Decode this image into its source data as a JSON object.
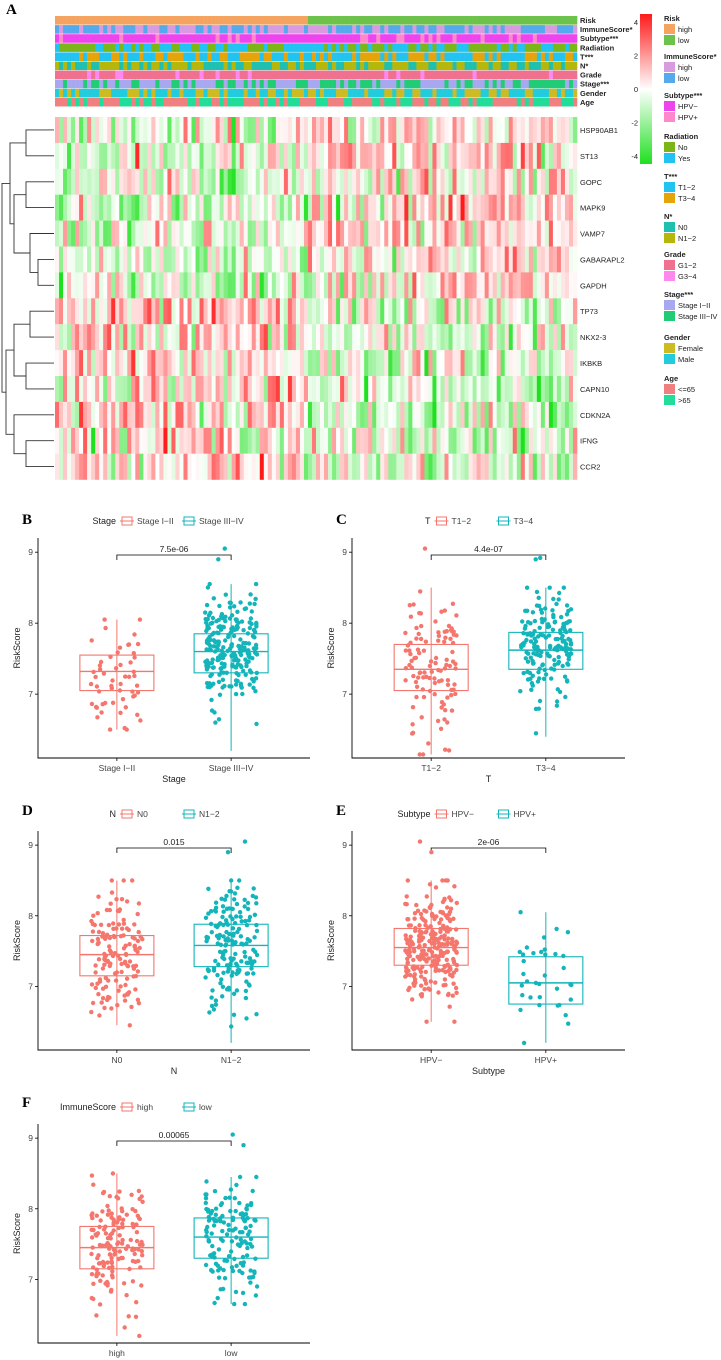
{
  "figure": {
    "panel_letters": [
      "A",
      "B",
      "C",
      "D",
      "E",
      "F"
    ]
  },
  "heatmap": {
    "annotation_tracks": [
      "Risk",
      "ImmuneScore*",
      "Subtype***",
      "Radiation",
      "T***",
      "N*",
      "Grade",
      "Stage***",
      "Gender",
      "Age"
    ],
    "genes": [
      "HSP90AB1",
      "ST13",
      "GOPC",
      "MAPK9",
      "VAMP7",
      "GABARAPL2",
      "GAPDH",
      "TP73",
      "NKX2-3",
      "IKBKB",
      "CAPN10",
      "CDKN2A",
      "IFNG",
      "CCR2"
    ],
    "color_scale": {
      "ticks": [
        "4",
        "2",
        "0",
        "-2",
        "-4"
      ],
      "low": "#1fe01f",
      "mid": "#ffffff",
      "high": "#ff1a1a"
    },
    "legend": [
      {
        "title": "Risk",
        "items": [
          {
            "label": "high",
            "color": "#f4a460"
          },
          {
            "label": "low",
            "color": "#6cc24a"
          }
        ]
      },
      {
        "title": "ImmuneScore*",
        "items": [
          {
            "label": "high",
            "color": "#d99be0"
          },
          {
            "label": "low",
            "color": "#55aaee"
          }
        ]
      },
      {
        "title": "Subtype***",
        "items": [
          {
            "label": "HPV−",
            "color": "#ee44ee"
          },
          {
            "label": "HPV+",
            "color": "#ff88cc"
          }
        ]
      },
      {
        "title": "Radiation",
        "items": [
          {
            "label": "No",
            "color": "#7cb518"
          },
          {
            "label": "Yes",
            "color": "#22c3f0"
          }
        ]
      },
      {
        "title": "T***",
        "items": [
          {
            "label": "T1−2",
            "color": "#22c3f0"
          },
          {
            "label": "T3−4",
            "color": "#e5a50a"
          }
        ]
      },
      {
        "title": "N*",
        "items": [
          {
            "label": "N0",
            "color": "#20c0b0"
          },
          {
            "label": "N1−2",
            "color": "#b5b80a"
          }
        ]
      },
      {
        "title": "Grade",
        "items": [
          {
            "label": "G1−2",
            "color": "#f07090"
          },
          {
            "label": "G3−4",
            "color": "#ff88ee"
          }
        ]
      },
      {
        "title": "Stage***",
        "items": [
          {
            "label": "Stage I−II",
            "color": "#a8a8f0"
          },
          {
            "label": "Stage III−IV",
            "color": "#22cc77"
          }
        ]
      },
      {
        "title": "Gender",
        "items": [
          {
            "label": "Female",
            "color": "#ccbb22"
          },
          {
            "label": "Male",
            "color": "#22ccdd"
          }
        ]
      },
      {
        "title": "Age",
        "items": [
          {
            "label": "<=65",
            "color": "#f08080"
          },
          {
            "label": ">65",
            "color": "#22dd99"
          }
        ]
      }
    ]
  },
  "chart_data": [
    {
      "panel": "B",
      "type": "box",
      "legend_title": "Stage",
      "xlabel": "Stage",
      "ylabel": "RiskScore",
      "categories": [
        "Stage I−II",
        "Stage III−IV"
      ],
      "colors": [
        "#f4766d",
        "#13b5ba"
      ],
      "box": [
        {
          "min": 6.5,
          "q1": 7.05,
          "median": 7.32,
          "q3": 7.55,
          "max": 8.05
        },
        {
          "min": 6.2,
          "q1": 7.3,
          "median": 7.6,
          "q3": 7.85,
          "max": 8.55
        }
      ],
      "n_points": [
        55,
        230
      ],
      "outliers": [
        [],
        [
          8.9,
          9.05
        ]
      ],
      "pvalue": "7.5e-06",
      "ylim": [
        6.1,
        9.2
      ],
      "yticks": [
        7,
        8,
        9
      ]
    },
    {
      "panel": "C",
      "type": "box",
      "legend_title": "T",
      "xlabel": "T",
      "ylabel": "RiskScore",
      "categories": [
        "T1−2",
        "T3−4"
      ],
      "colors": [
        "#f4766d",
        "#13b5ba"
      ],
      "box": [
        {
          "min": 6.15,
          "q1": 7.05,
          "median": 7.35,
          "q3": 7.7,
          "max": 8.5
        },
        {
          "min": 6.4,
          "q1": 7.35,
          "median": 7.62,
          "q3": 7.87,
          "max": 8.5
        }
      ],
      "n_points": [
        110,
        170
      ],
      "outliers": [
        [
          9.05
        ],
        [
          8.9,
          8.92
        ]
      ],
      "pvalue": "4.4e-07",
      "ylim": [
        6.1,
        9.2
      ],
      "yticks": [
        7,
        8,
        9
      ]
    },
    {
      "panel": "D",
      "type": "box",
      "legend_title": "N",
      "xlabel": "N",
      "ylabel": "RiskScore",
      "categories": [
        "N0",
        "N1−2"
      ],
      "colors": [
        "#f4766d",
        "#13b5ba"
      ],
      "box": [
        {
          "min": 6.45,
          "q1": 7.15,
          "median": 7.45,
          "q3": 7.72,
          "max": 8.5
        },
        {
          "min": 6.2,
          "q1": 7.28,
          "median": 7.58,
          "q3": 7.88,
          "max": 8.5
        }
      ],
      "n_points": [
        140,
        170
      ],
      "outliers": [
        [],
        [
          8.9,
          9.05
        ]
      ],
      "pvalue": "0.015",
      "ylim": [
        6.1,
        9.2
      ],
      "yticks": [
        7,
        8,
        9
      ]
    },
    {
      "panel": "E",
      "type": "box",
      "legend_title": "Subtype",
      "xlabel": "Subtype",
      "ylabel": "RiskScore",
      "categories": [
        "HPV−",
        "HPV+"
      ],
      "colors": [
        "#f4766d",
        "#13b5ba"
      ],
      "box": [
        {
          "min": 6.5,
          "q1": 7.3,
          "median": 7.55,
          "q3": 7.82,
          "max": 8.5
        },
        {
          "min": 6.2,
          "q1": 6.75,
          "median": 7.05,
          "q3": 7.42,
          "max": 8.05
        }
      ],
      "n_points": [
        260,
        35
      ],
      "outliers": [
        [
          8.9,
          9.05
        ],
        []
      ],
      "pvalue": "2e-06",
      "ylim": [
        6.1,
        9.2
      ],
      "yticks": [
        7,
        8,
        9
      ]
    },
    {
      "panel": "F",
      "type": "box",
      "legend_title": "ImmuneScore",
      "xlabel": "ImmuneScore",
      "ylabel": "RiskScore",
      "categories": [
        "high",
        "low"
      ],
      "colors": [
        "#f4766d",
        "#13b5ba"
      ],
      "box": [
        {
          "min": 6.2,
          "q1": 7.15,
          "median": 7.45,
          "q3": 7.75,
          "max": 8.5
        },
        {
          "min": 6.65,
          "q1": 7.3,
          "median": 7.6,
          "q3": 7.87,
          "max": 8.45
        }
      ],
      "n_points": [
        150,
        140
      ],
      "outliers": [
        [],
        [
          8.9,
          9.05
        ]
      ],
      "pvalue": "0.00065",
      "ylim": [
        6.1,
        9.2
      ],
      "yticks": [
        7,
        8,
        9
      ]
    }
  ]
}
